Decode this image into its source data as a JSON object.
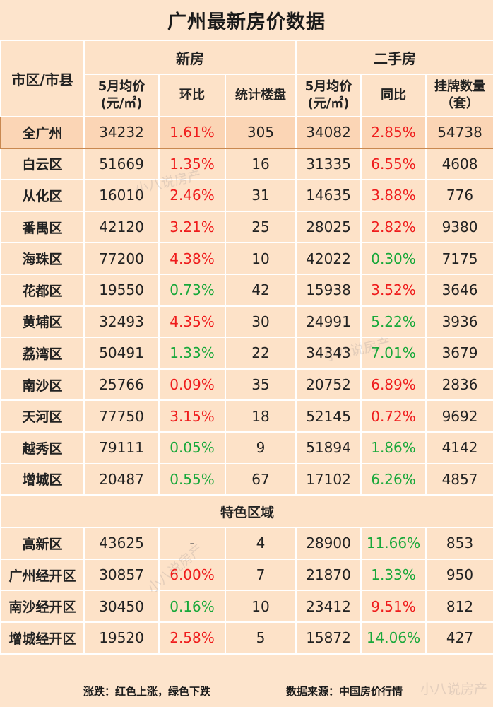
{
  "title": "广州最新房价数据",
  "headers": {
    "district": "市区/市县",
    "new_house": "新房",
    "second_hand": "二手房",
    "avg_price_line1": "5月均价",
    "avg_price_line2": "(元/㎡)",
    "mom": "环比",
    "projects": "统计楼盘",
    "yoy": "同比",
    "listings_line1": "挂牌数量",
    "listings_line2": "（套）"
  },
  "rows": [
    {
      "name": "全广州",
      "new_price": "34232",
      "new_mom": "1.61%",
      "new_mom_dir": "up",
      "projects": "305",
      "sh_price": "34082",
      "sh_yoy": "2.85%",
      "sh_yoy_dir": "up",
      "listings": "54738"
    },
    {
      "name": "白云区",
      "new_price": "51669",
      "new_mom": "1.35%",
      "new_mom_dir": "up",
      "projects": "16",
      "sh_price": "31335",
      "sh_yoy": "6.55%",
      "sh_yoy_dir": "up",
      "listings": "4608"
    },
    {
      "name": "从化区",
      "new_price": "16010",
      "new_mom": "2.46%",
      "new_mom_dir": "up",
      "projects": "31",
      "sh_price": "14635",
      "sh_yoy": "3.88%",
      "sh_yoy_dir": "up",
      "listings": "776"
    },
    {
      "name": "番禺区",
      "new_price": "42120",
      "new_mom": "3.21%",
      "new_mom_dir": "up",
      "projects": "25",
      "sh_price": "28025",
      "sh_yoy": "2.82%",
      "sh_yoy_dir": "up",
      "listings": "9380"
    },
    {
      "name": "海珠区",
      "new_price": "77200",
      "new_mom": "4.38%",
      "new_mom_dir": "up",
      "projects": "10",
      "sh_price": "42022",
      "sh_yoy": "0.30%",
      "sh_yoy_dir": "down",
      "listings": "7175"
    },
    {
      "name": "花都区",
      "new_price": "19550",
      "new_mom": "0.73%",
      "new_mom_dir": "down",
      "projects": "42",
      "sh_price": "15938",
      "sh_yoy": "3.52%",
      "sh_yoy_dir": "up",
      "listings": "3646"
    },
    {
      "name": "黄埔区",
      "new_price": "32493",
      "new_mom": "4.35%",
      "new_mom_dir": "up",
      "projects": "30",
      "sh_price": "24991",
      "sh_yoy": "5.22%",
      "sh_yoy_dir": "down",
      "listings": "3936"
    },
    {
      "name": "荔湾区",
      "new_price": "50491",
      "new_mom": "1.33%",
      "new_mom_dir": "down",
      "projects": "22",
      "sh_price": "34343",
      "sh_yoy": "7.01%",
      "sh_yoy_dir": "down",
      "listings": "3679"
    },
    {
      "name": "南沙区",
      "new_price": "25766",
      "new_mom": "0.09%",
      "new_mom_dir": "up",
      "projects": "35",
      "sh_price": "20752",
      "sh_yoy": "6.89%",
      "sh_yoy_dir": "up",
      "listings": "2836"
    },
    {
      "name": "天河区",
      "new_price": "77750",
      "new_mom": "3.15%",
      "new_mom_dir": "up",
      "projects": "18",
      "sh_price": "52145",
      "sh_yoy": "0.72%",
      "sh_yoy_dir": "up",
      "listings": "9692"
    },
    {
      "name": "越秀区",
      "new_price": "79111",
      "new_mom": "0.05%",
      "new_mom_dir": "down",
      "projects": "9",
      "sh_price": "51894",
      "sh_yoy": "1.86%",
      "sh_yoy_dir": "down",
      "listings": "4142"
    },
    {
      "name": "增城区",
      "new_price": "20487",
      "new_mom": "0.55%",
      "new_mom_dir": "down",
      "projects": "67",
      "sh_price": "17102",
      "sh_yoy": "6.26%",
      "sh_yoy_dir": "down",
      "listings": "4857"
    }
  ],
  "special_section_title": "特色区域",
  "special_rows": [
    {
      "name": "高新区",
      "new_price": "43625",
      "new_mom": "-",
      "new_mom_dir": "flat",
      "projects": "4",
      "sh_price": "28900",
      "sh_yoy": "11.66%",
      "sh_yoy_dir": "down",
      "listings": "853"
    },
    {
      "name": "广州经开区",
      "new_price": "30857",
      "new_mom": "6.00%",
      "new_mom_dir": "up",
      "projects": "7",
      "sh_price": "21870",
      "sh_yoy": "1.33%",
      "sh_yoy_dir": "down",
      "listings": "950"
    },
    {
      "name": "南沙经开区",
      "new_price": "30450",
      "new_mom": "0.16%",
      "new_mom_dir": "down",
      "projects": "10",
      "sh_price": "23412",
      "sh_yoy": "9.51%",
      "sh_yoy_dir": "up",
      "listings": "812"
    },
    {
      "name": "增城经开区",
      "new_price": "19520",
      "new_mom": "2.58%",
      "new_mom_dir": "up",
      "projects": "5",
      "sh_price": "15872",
      "sh_yoy": "14.06%",
      "sh_yoy_dir": "down",
      "listings": "427"
    }
  ],
  "footer": {
    "legend": "涨跌：红色上涨，绿色下跌",
    "source": "数据来源：中国房价行情"
  },
  "watermark": "小八说房产",
  "colors": {
    "up": "#ef1c1c",
    "down": "#18a83a",
    "cell_bg": "#fde2c8",
    "border": "#ffffff"
  }
}
